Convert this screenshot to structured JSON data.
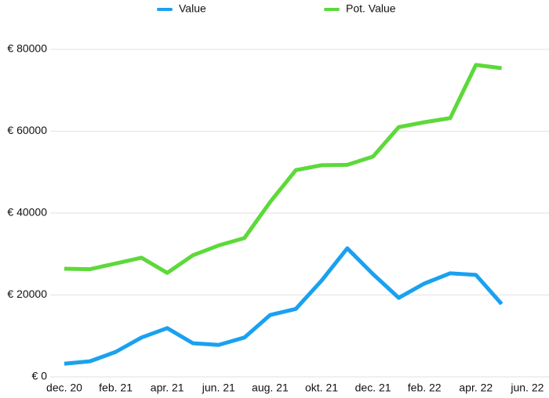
{
  "chart_data": {
    "type": "line",
    "categories": [
      "dec. 20",
      null,
      "feb. 21",
      null,
      "apr. 21",
      null,
      "jun. 21",
      null,
      "aug. 21",
      null,
      "okt. 21",
      null,
      "dec. 21",
      null,
      "feb. 22",
      null,
      "apr. 22",
      null,
      "jun. 22"
    ],
    "series": [
      {
        "name": "Value",
        "color": "#1aa1f0",
        "values": [
          3200,
          3800,
          6100,
          9600,
          11900,
          8200,
          7800,
          9600,
          15100,
          16600,
          23500,
          31400,
          25100,
          19300,
          22800,
          25300,
          24900,
          17800,
          null
        ]
      },
      {
        "name": "Pot. Value",
        "color": "#5dd93a",
        "values": [
          26400,
          26300,
          27700,
          29100,
          25400,
          29700,
          32100,
          33900,
          42700,
          50500,
          51700,
          51800,
          53800,
          61000,
          62200,
          63200,
          76200,
          75400,
          null
        ]
      }
    ],
    "ylim": [
      0,
      80000
    ],
    "yticks": [
      {
        "value": 0,
        "label": "€ 0"
      },
      {
        "value": 20000,
        "label": "€ 20000"
      },
      {
        "value": 40000,
        "label": "€ 40000"
      },
      {
        "value": 60000,
        "label": "€ 60000"
      },
      {
        "value": 80000,
        "label": "€ 80000"
      }
    ],
    "grid": true,
    "legend": "top"
  }
}
